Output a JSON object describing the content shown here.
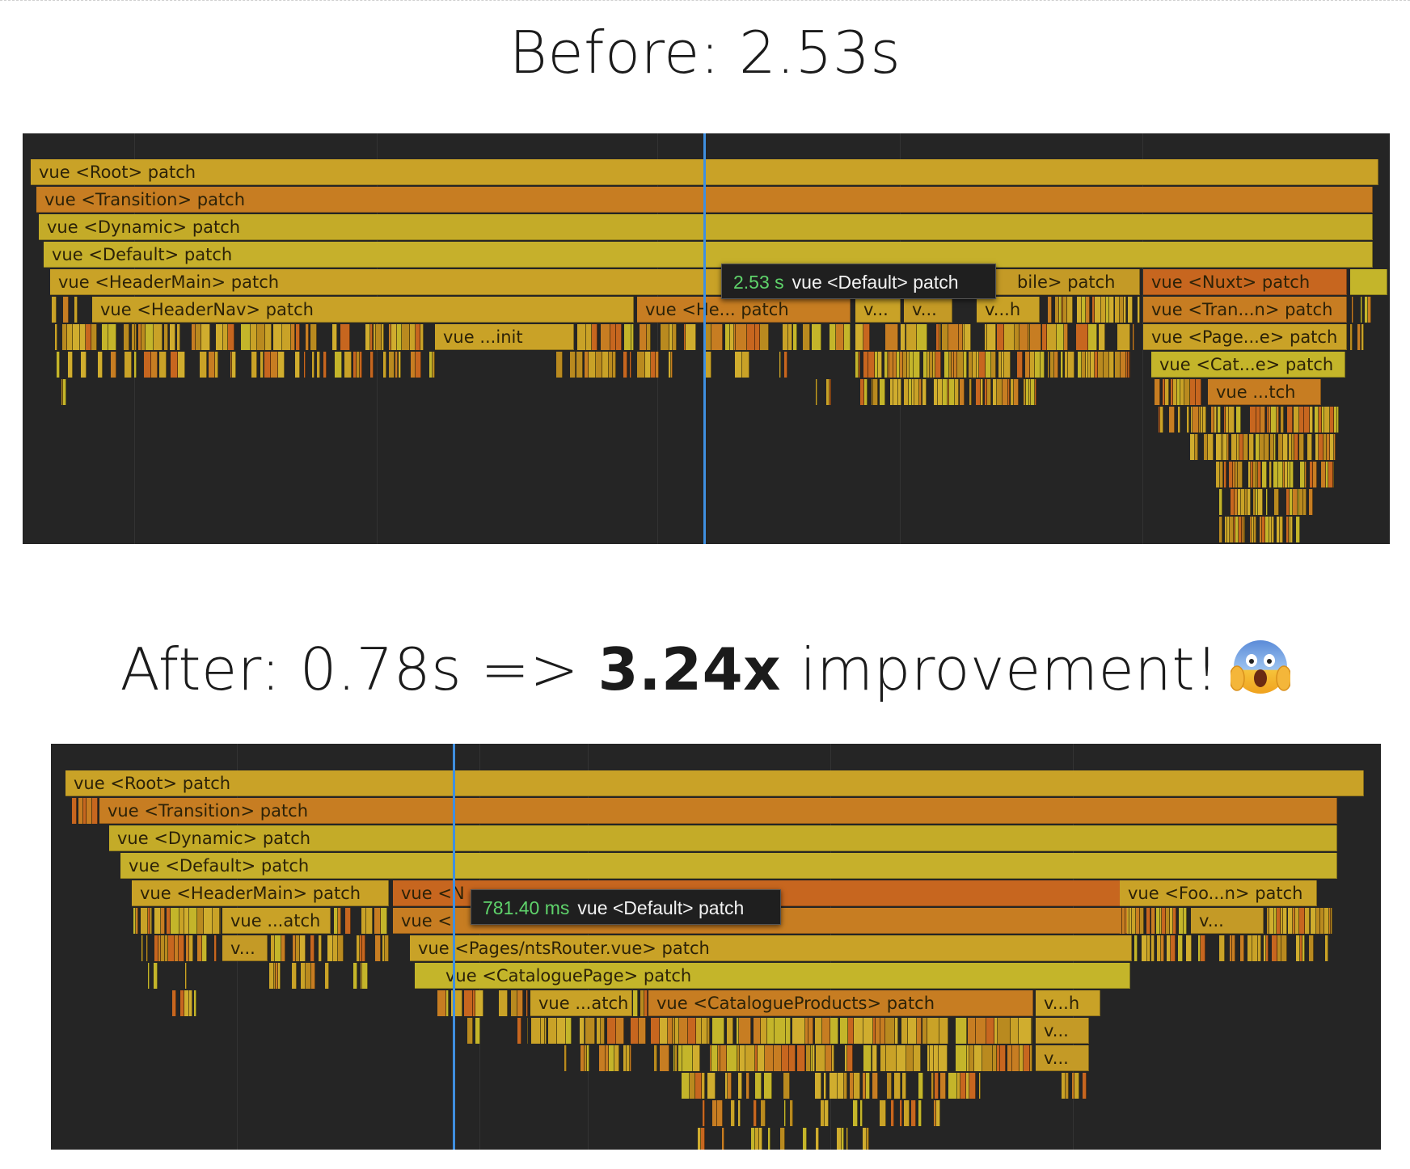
{
  "before": {
    "heading": "Before: 2.53s",
    "tooltip": {
      "time": "2.53 s",
      "label": "vue <Default> patch"
    },
    "labels": {
      "root": "vue <Root> patch",
      "transition": "vue <Transition> patch",
      "dynamic": "vue <Dynamic> patch",
      "default": "vue <Default> patch",
      "header_main": "vue <HeaderMain> patch",
      "mobile": "bile> patch",
      "nuxt": "vue <Nuxt> patch",
      "header_nav": "vue <HeaderNav> patch",
      "he": "vue <He... patch",
      "v1": "v...",
      "v2": "v...",
      "vh": "v...h",
      "tran": "vue <Tran...n> patch",
      "init": "vue ...init",
      "page": "vue <Page...e> patch",
      "cat": "vue <Cat...e> patch",
      "tch": "vue ...tch"
    }
  },
  "after": {
    "heading_prefix": "After: 0.78s => ",
    "heading_bold": "3.24x",
    "heading_suffix": " improvement!",
    "emoji": "face-screaming-in-fear-icon",
    "tooltip": {
      "time": "781.40 ms",
      "label": "vue <Default> patch"
    },
    "labels": {
      "root": "vue <Root> patch",
      "transition": "vue <Transition> patch",
      "dynamic": "vue <Dynamic> patch",
      "default": "vue <Default> patch",
      "header_main": "vue <HeaderMain> patch",
      "vue_n": "vue <N",
      "foo": "vue <Foo...n> patch",
      "atch_short": "vue ...atch",
      "vue_t": "vue <",
      "v_short": "v...",
      "pages_router": "vue <Pages/ntsRouter.vue> patch",
      "catalogue_page": "vue <CataloguePage> patch",
      "atch2": "vue ...atch",
      "catalogue_products": "vue <CatalogueProducts> patch",
      "vh": "v...h",
      "v_a": "v...",
      "v_b": "v...",
      "v_foo": "v..."
    }
  },
  "colors": {
    "panel_bg": "#252525",
    "cursor": "#3f8fe0",
    "tooltip_time": "#5fd36b",
    "bar_gold": "#c9a227",
    "bar_orange": "#c77d22",
    "bar_yellow": "#c4b52a",
    "bar_deep_orange": "#c7661f"
  }
}
